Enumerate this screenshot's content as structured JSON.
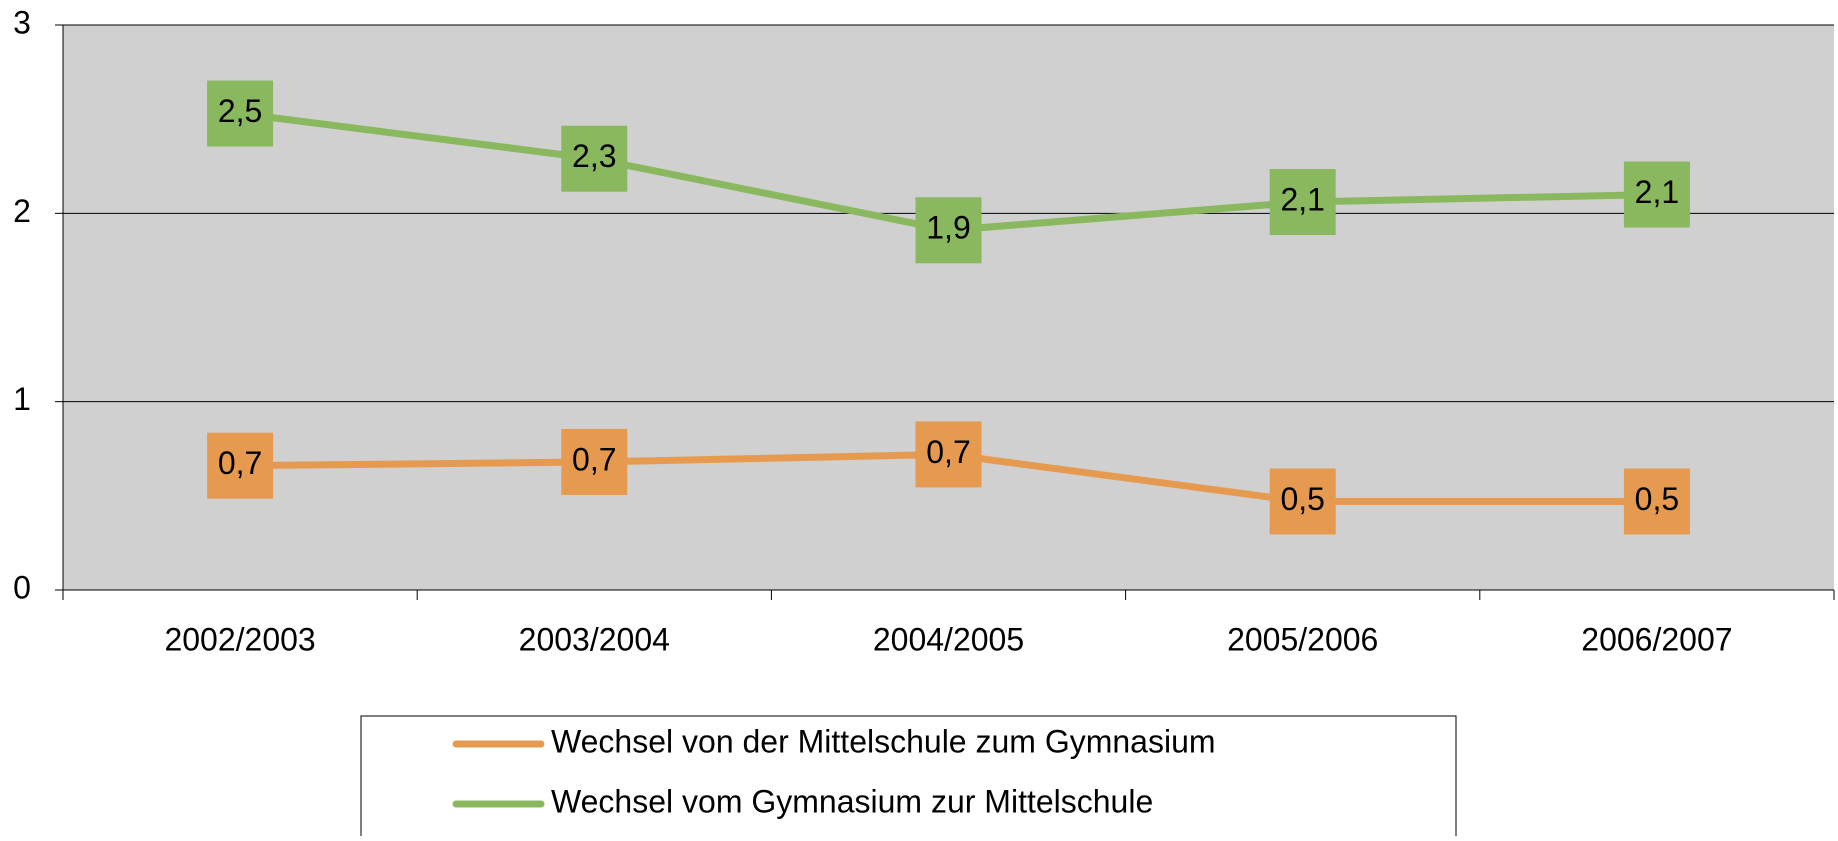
{
  "chart_data": {
    "type": "line",
    "categories": [
      "2002/2003",
      "2003/2004",
      "2004/2005",
      "2005/2006",
      "2006/2007"
    ],
    "series": [
      {
        "name": "Wechsel von der Mittelschule zum Gymnasium",
        "color": "#e69a50",
        "values": [
          0.66,
          0.68,
          0.72,
          0.47,
          0.47
        ],
        "value_labels": [
          "0,7",
          "0,7",
          "0,7",
          "0,5",
          "0,5"
        ]
      },
      {
        "name": "Wechsel vom Gymnasium zur Mittelschule",
        "color": "#8ab85e",
        "values": [
          2.53,
          2.29,
          1.91,
          2.06,
          2.1
        ],
        "value_labels": [
          "2,5",
          "2,3",
          "1,9",
          "2,1",
          "2,1"
        ]
      }
    ],
    "ylim": [
      0,
      3
    ],
    "yticks": [
      0,
      1,
      2,
      3
    ],
    "grid": true,
    "legend": "bottom"
  }
}
